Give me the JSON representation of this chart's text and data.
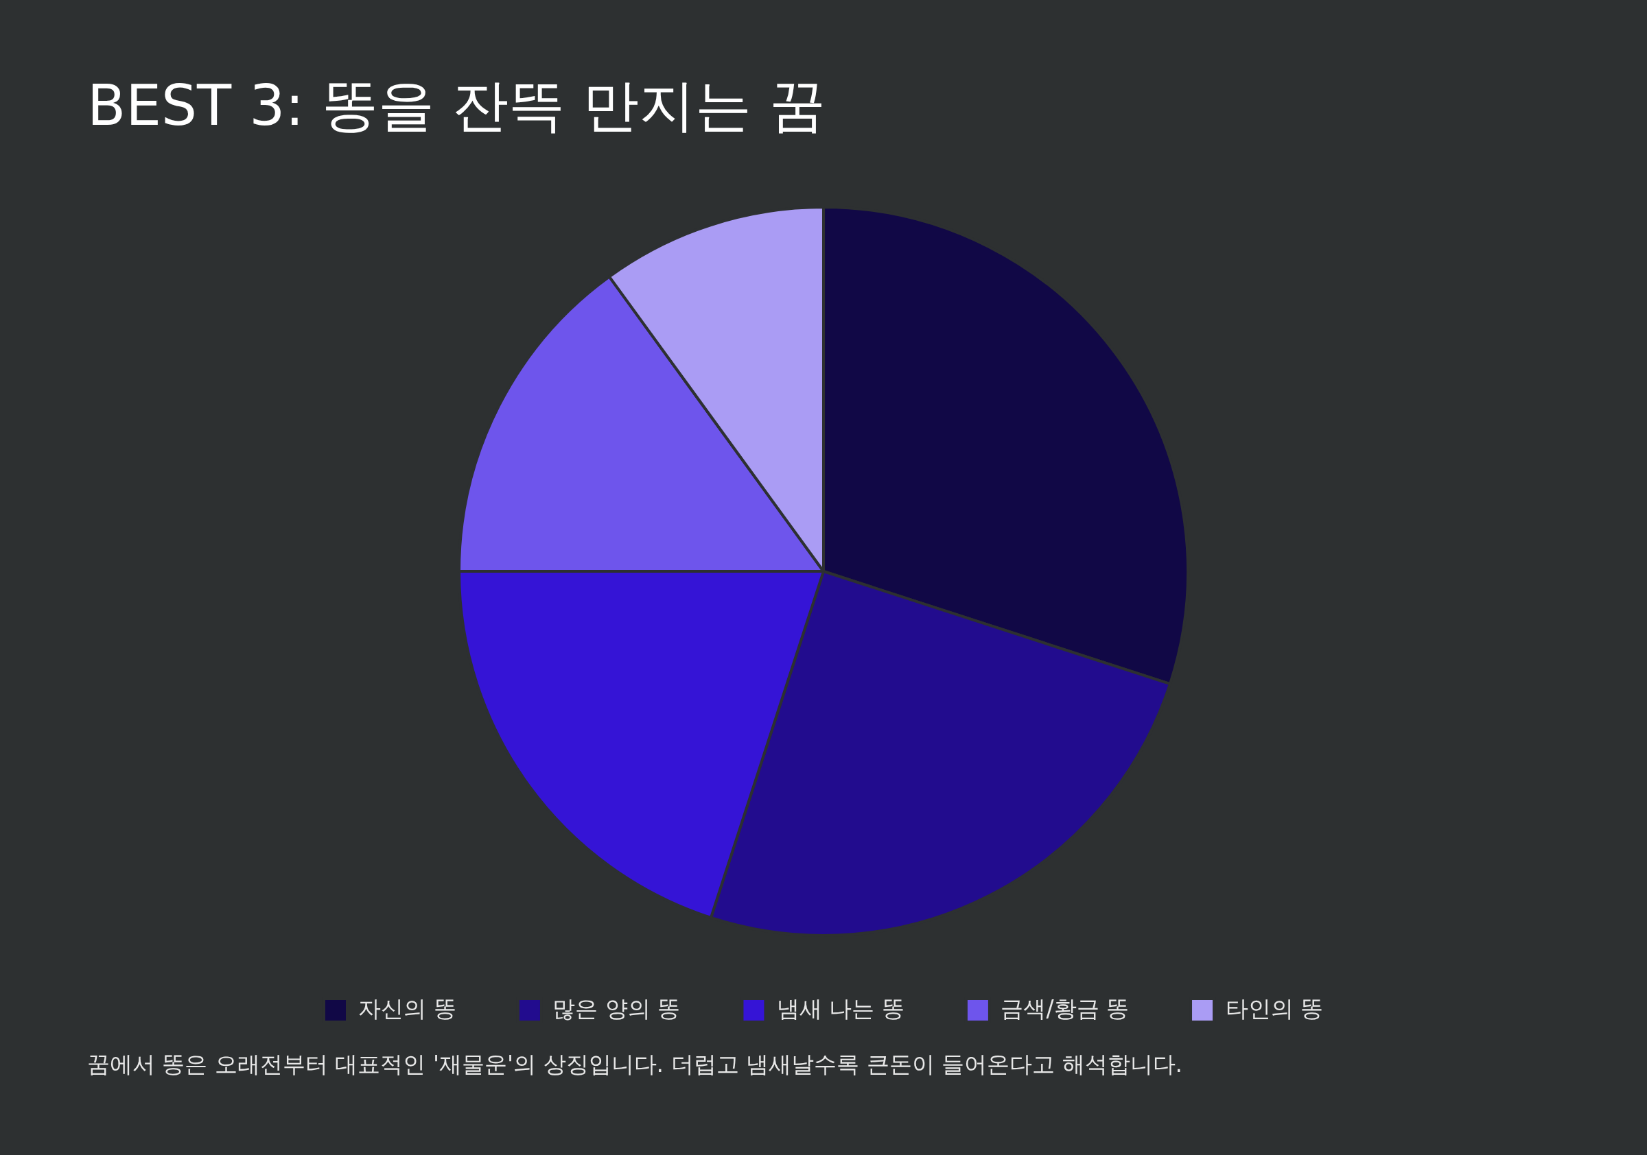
{
  "chart_data": {
    "type": "pie",
    "title": "BEST 3: 똥을 잔뜩 만지는 꿈",
    "categories": [
      "자신의 똥",
      "많은 양의 똥",
      "냄새 나는 똥",
      "금색/황금 똥",
      "타인의 똥"
    ],
    "values": [
      30,
      25,
      20,
      15,
      10
    ],
    "colors": [
      "#110846",
      "#220c8e",
      "#3514d6",
      "#6e55ec",
      "#aa9cf4"
    ],
    "legend": "bottom",
    "annotations": [
      "꿈에서 똥은 오래전부터 대표적인 '재물운'의 상징입니다. 더럽고 냄새날수록 큰돈이 들어온다고 해석합니다."
    ]
  }
}
